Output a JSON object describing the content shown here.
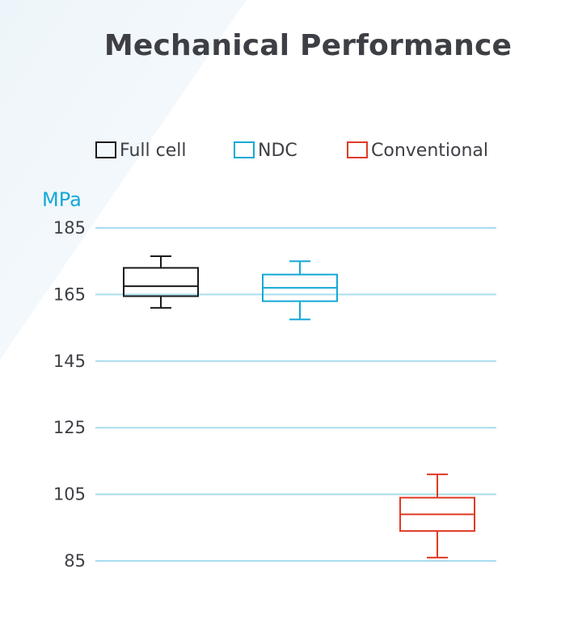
{
  "chart_data": {
    "type": "box",
    "title": "Mechanical Performance",
    "ylabel": "MPa",
    "ylim": [
      85,
      185
    ],
    "yticks": [
      185,
      165,
      145,
      125,
      105,
      85
    ],
    "grid": true,
    "legend_position": "top",
    "colors": {
      "title": "#3d3f45",
      "grid": "#a9dcef",
      "unit": "#14a9d6"
    },
    "series": [
      {
        "name": "Full cell",
        "color": "#1a1a1a",
        "min": 161,
        "q1": 164.5,
        "median": 167.5,
        "q3": 173,
        "max": 176.5
      },
      {
        "name": "NDC",
        "color": "#14a9d6",
        "min": 157.5,
        "q1": 163,
        "median": 167,
        "q3": 171,
        "max": 175
      },
      {
        "name": "Conventional",
        "color": "#e03a26",
        "min": 86,
        "q1": 94,
        "median": 99,
        "q3": 104,
        "max": 111
      }
    ]
  }
}
